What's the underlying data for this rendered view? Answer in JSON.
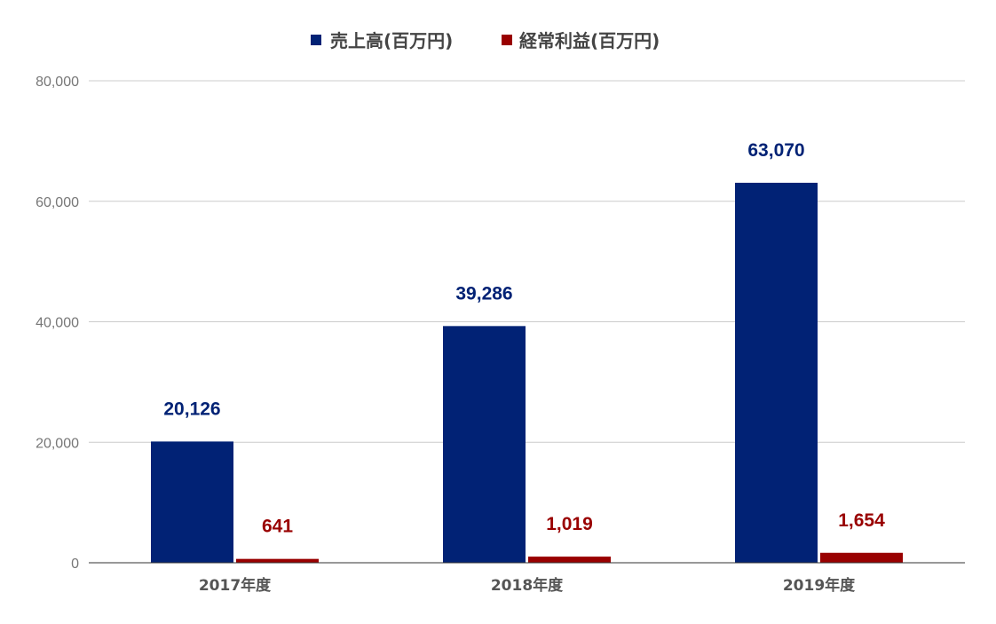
{
  "chart_data": {
    "type": "bar",
    "title": "",
    "xlabel": "",
    "ylabel": "",
    "categories": [
      "2017年度",
      "2018年度",
      "2019年度"
    ],
    "series": [
      {
        "name": "売上高(百万円)",
        "color": "#012275",
        "values": [
          20126,
          39286,
          63070
        ],
        "labels": [
          "20,126",
          "39,286",
          "63,070"
        ]
      },
      {
        "name": "経常利益(百万円)",
        "color": "#990000",
        "values": [
          641,
          1019,
          1654
        ],
        "labels": [
          "641",
          "1,019",
          "1,654"
        ]
      }
    ],
    "ylim": [
      0,
      80000
    ],
    "yticks": [
      0,
      20000,
      40000,
      60000,
      80000
    ],
    "ytick_labels": [
      "0",
      "20,000",
      "40,000",
      "60,000",
      "80,000"
    ],
    "grid": true,
    "legend_position": "top-center"
  }
}
